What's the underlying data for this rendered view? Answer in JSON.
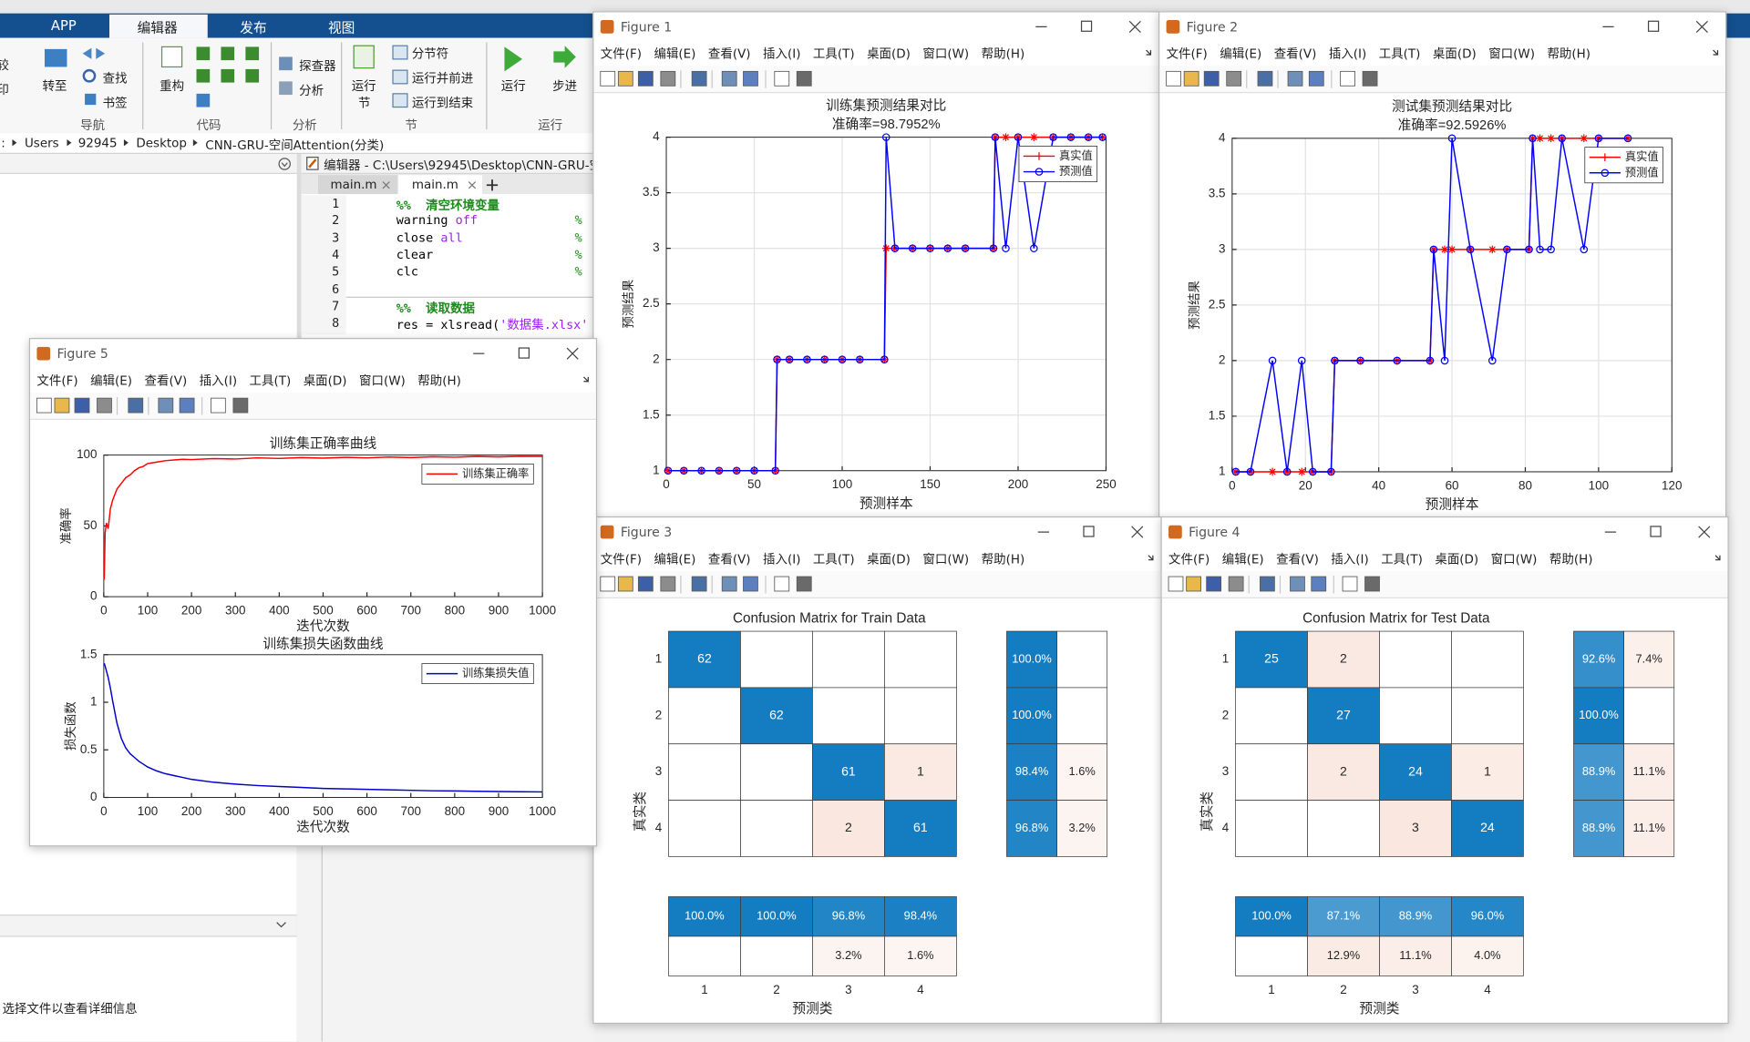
{
  "ribbon": {
    "tabs": [
      "APP",
      "编辑器",
      "发布",
      "视图"
    ],
    "controls": [
      "较",
      "印",
      "转至",
      "查找",
      "书签",
      "重构",
      "探查器",
      "分析",
      "运行",
      "节",
      "分节符",
      "运行并前进",
      "运行到结束",
      "运行",
      "步进"
    ],
    "groups": [
      "导航",
      "代码",
      "分析",
      "节",
      "运行"
    ]
  },
  "address": {
    "prefix": ":",
    "segments": [
      "Users",
      "92945",
      "Desktop",
      "CNN-GRU-空间Attention(分类)"
    ]
  },
  "file_panel": {
    "details": "选择文件以查看详细信息"
  },
  "editor": {
    "title": "编辑器 - C:\\Users\\92945\\Desktop\\CNN-GRU-空",
    "tabs": [
      "main.m",
      "main.m"
    ],
    "lines": [
      {
        "number": 1,
        "code": [
          {
            "text": "%%  清空环境变量",
            "color": "#1e8a1e",
            "bold": true
          }
        ]
      },
      {
        "number": 2,
        "code": [
          {
            "text": "warning "
          },
          {
            "text": "off",
            "color": "#a020f0"
          }
        ],
        "comment": "%"
      },
      {
        "number": 3,
        "code": [
          {
            "text": "close "
          },
          {
            "text": "all",
            "color": "#a020f0"
          }
        ],
        "comment": "%"
      },
      {
        "number": 4,
        "code": [
          {
            "text": "clear"
          }
        ],
        "comment": "%"
      },
      {
        "number": 5,
        "code": [
          {
            "text": "clc"
          }
        ],
        "comment": "%"
      },
      {
        "number": 6
      },
      {
        "number": 7,
        "code": [
          {
            "text": "%%  读取数据",
            "color": "#1e8a1e",
            "bold": true
          }
        ]
      },
      {
        "number": 8,
        "code": [
          {
            "text": "res = xlsread("
          },
          {
            "text": "'数据集.xlsx'",
            "color": "#a020f0"
          }
        ]
      }
    ]
  },
  "figure_menu": [
    "文件(F)",
    "编辑(E)",
    "查看(V)",
    "插入(I)",
    "工具(T)",
    "桌面(D)",
    "窗口(W)",
    "帮助(H)"
  ],
  "figures": [
    {
      "title": "Figure 1"
    },
    {
      "title": "Figure 2"
    },
    {
      "title": "Figure 3"
    },
    {
      "title": "Figure 4"
    },
    {
      "title": "Figure 5"
    }
  ],
  "chart_data": [
    {
      "type": "line",
      "title": "训练集预测结果对比",
      "subtitle": "准确率=98.7952%",
      "xlabel": "预测样本",
      "ylabel": "预测结果",
      "x": [
        1,
        10,
        20,
        30,
        40,
        50,
        62,
        63,
        70,
        80,
        90,
        100,
        110,
        124,
        125,
        130,
        140,
        150,
        160,
        170,
        186,
        187,
        193,
        200,
        209,
        220,
        230,
        240,
        248
      ],
      "xlim": [
        0,
        250
      ],
      "xticks": [
        0,
        50,
        100,
        150,
        200,
        250
      ],
      "ylim": [
        1,
        4
      ],
      "yticks": [
        1,
        1.5,
        2,
        2.5,
        3,
        3.5,
        4
      ],
      "grid": true,
      "legend": "northeast",
      "series": [
        {
          "name": "真实值",
          "color": "#ff0000",
          "marker": "*",
          "values": [
            1,
            1,
            1,
            1,
            1,
            1,
            1,
            2,
            2,
            2,
            2,
            2,
            2,
            2,
            3,
            3,
            3,
            3,
            3,
            3,
            3,
            4,
            4,
            4,
            4,
            4,
            4,
            4,
            4
          ]
        },
        {
          "name": "预测值",
          "color": "#0000ff",
          "marker": "o",
          "values": [
            1,
            1,
            1,
            1,
            1,
            1,
            1,
            2,
            2,
            2,
            2,
            2,
            2,
            2,
            4,
            3,
            3,
            3,
            3,
            3,
            3,
            4,
            3,
            4,
            3,
            4,
            4,
            4,
            4
          ]
        }
      ]
    },
    {
      "type": "line",
      "title": "测试集预测结果对比",
      "subtitle": "准确率=92.5926%",
      "xlabel": "预测样本",
      "ylabel": "预测结果",
      "x": [
        1,
        5,
        11,
        15,
        19,
        22,
        27,
        28,
        35,
        45,
        54,
        55,
        58,
        60,
        65,
        71,
        75,
        81,
        82,
        84,
        87,
        90,
        96,
        100,
        108
      ],
      "xlim": [
        0,
        120
      ],
      "xticks": [
        0,
        20,
        40,
        60,
        80,
        100,
        120
      ],
      "ylim": [
        1,
        4
      ],
      "yticks": [
        1,
        1.5,
        2,
        2.5,
        3,
        3.5,
        4
      ],
      "grid": true,
      "legend": "northeast",
      "series": [
        {
          "name": "真实值",
          "color": "#ff0000",
          "marker": "*",
          "values": [
            1,
            1,
            1,
            1,
            1,
            1,
            1,
            2,
            2,
            2,
            2,
            3,
            3,
            3,
            3,
            3,
            3,
            3,
            4,
            4,
            4,
            4,
            4,
            4,
            4
          ]
        },
        {
          "name": "预测值",
          "color": "#0000ff",
          "marker": "o",
          "values": [
            1,
            1,
            2,
            1,
            2,
            1,
            1,
            2,
            2,
            2,
            2,
            3,
            2,
            4,
            3,
            2,
            3,
            3,
            4,
            3,
            3,
            4,
            3,
            4,
            4
          ]
        }
      ]
    },
    {
      "type": "line",
      "title": "训练集正确率曲线",
      "xlabel": "迭代次数",
      "ylabel": "准确率",
      "x": [
        1,
        3,
        6,
        10,
        15,
        20,
        25,
        30,
        40,
        50,
        60,
        70,
        80,
        90,
        100,
        120,
        140,
        160,
        180,
        200,
        250,
        300,
        350,
        400,
        450,
        500,
        550,
        600,
        650,
        700,
        750,
        800,
        850,
        900,
        950,
        1000
      ],
      "xlim": [
        0,
        1000
      ],
      "xticks": [
        0,
        100,
        200,
        300,
        400,
        500,
        600,
        700,
        800,
        900,
        1000
      ],
      "ylim": [
        0,
        100
      ],
      "yticks": [
        0,
        50,
        100
      ],
      "grid": false,
      "legend": "northeast",
      "series": [
        {
          "name": "训练集正确率",
          "color": "#ff0000",
          "values": [
            12,
            45,
            52,
            48,
            62,
            68,
            72,
            76,
            80,
            84,
            86,
            89,
            91,
            92,
            94,
            95,
            96,
            96.5,
            97,
            96.8,
            97.5,
            97.2,
            98,
            97.6,
            98.2,
            97.8,
            98.4,
            98,
            98.6,
            98.2,
            98.8,
            98.5,
            99,
            98.7,
            99.1,
            99
          ]
        }
      ]
    },
    {
      "type": "line",
      "title": "训练集损失函数曲线",
      "xlabel": "迭代次数",
      "ylabel": "损失函数",
      "x": [
        1,
        3,
        6,
        10,
        15,
        20,
        25,
        30,
        40,
        50,
        60,
        70,
        80,
        90,
        100,
        120,
        140,
        160,
        180,
        200,
        250,
        300,
        350,
        400,
        450,
        500,
        550,
        600,
        650,
        700,
        750,
        800,
        850,
        900,
        950,
        1000
      ],
      "xlim": [
        0,
        1000
      ],
      "xticks": [
        0,
        100,
        200,
        300,
        400,
        500,
        600,
        700,
        800,
        900,
        1000
      ],
      "ylim": [
        0,
        1.5
      ],
      "yticks": [
        0,
        0.5,
        1,
        1.5
      ],
      "grid": false,
      "legend": "northeast",
      "series": [
        {
          "name": "训练集损失值",
          "color": "#0000cc",
          "values": [
            1.41,
            1.38,
            1.33,
            1.26,
            1.15,
            1.02,
            0.9,
            0.78,
            0.62,
            0.52,
            0.46,
            0.42,
            0.38,
            0.35,
            0.32,
            0.28,
            0.25,
            0.23,
            0.21,
            0.19,
            0.16,
            0.14,
            0.125,
            0.115,
            0.105,
            0.095,
            0.09,
            0.085,
            0.08,
            0.075,
            0.07,
            0.068,
            0.065,
            0.062,
            0.06,
            0.058
          ]
        }
      ]
    },
    {
      "type": "confusion_matrix",
      "title": "Confusion Matrix for Train Data",
      "xlabel": "预测类",
      "ylabel": "真实类",
      "categories": [
        1,
        2,
        3,
        4
      ],
      "values": [
        [
          62,
          null,
          null,
          null
        ],
        [
          null,
          62,
          null,
          null
        ],
        [
          null,
          null,
          61,
          1
        ],
        [
          null,
          null,
          2,
          61
        ]
      ],
      "row_summary": [
        {
          "values": [
            100.0,
            100.0,
            98.4,
            96.8
          ],
          "value_labels": [
            "100.0%",
            "100.0%",
            "98.4%",
            "96.8%"
          ]
        },
        {
          "values": [
            null,
            null,
            1.6,
            3.2
          ],
          "value_labels": [
            null,
            null,
            "1.6%",
            "3.2%"
          ]
        }
      ],
      "column_summary": [
        {
          "values": [
            100.0,
            100.0,
            96.8,
            98.4
          ],
          "value_labels": [
            "100.0%",
            "100.0%",
            "96.8%",
            "98.4%"
          ]
        },
        {
          "values": [
            null,
            null,
            3.2,
            1.6
          ],
          "value_labels": [
            null,
            null,
            "3.2%",
            "1.6%"
          ]
        }
      ],
      "correct_color": "#0072bd",
      "incorrect_color": "#d95319"
    },
    {
      "type": "confusion_matrix",
      "title": "Confusion Matrix for Test Data",
      "xlabel": "预测类",
      "ylabel": "真实类",
      "categories": [
        1,
        2,
        3,
        4
      ],
      "values": [
        [
          25,
          2,
          null,
          null
        ],
        [
          null,
          27,
          null,
          null
        ],
        [
          null,
          2,
          24,
          1
        ],
        [
          null,
          null,
          3,
          24
        ]
      ],
      "row_summary": [
        {
          "values": [
            92.6,
            100.0,
            88.9,
            88.9
          ],
          "value_labels": [
            "92.6%",
            "100.0%",
            "88.9%",
            "88.9%"
          ]
        },
        {
          "values": [
            7.4,
            null,
            11.1,
            11.1
          ],
          "value_labels": [
            "7.4%",
            null,
            "11.1%",
            "11.1%"
          ]
        }
      ],
      "column_summary": [
        {
          "values": [
            100.0,
            87.1,
            88.9,
            96.0
          ],
          "value_labels": [
            "100.0%",
            "87.1%",
            "88.9%",
            "96.0%"
          ]
        },
        {
          "values": [
            null,
            12.9,
            11.1,
            4.0
          ],
          "value_labels": [
            null,
            "12.9%",
            "11.1%",
            "4.0%"
          ]
        }
      ],
      "correct_color": "#0072bd",
      "incorrect_color": "#d95319"
    }
  ]
}
